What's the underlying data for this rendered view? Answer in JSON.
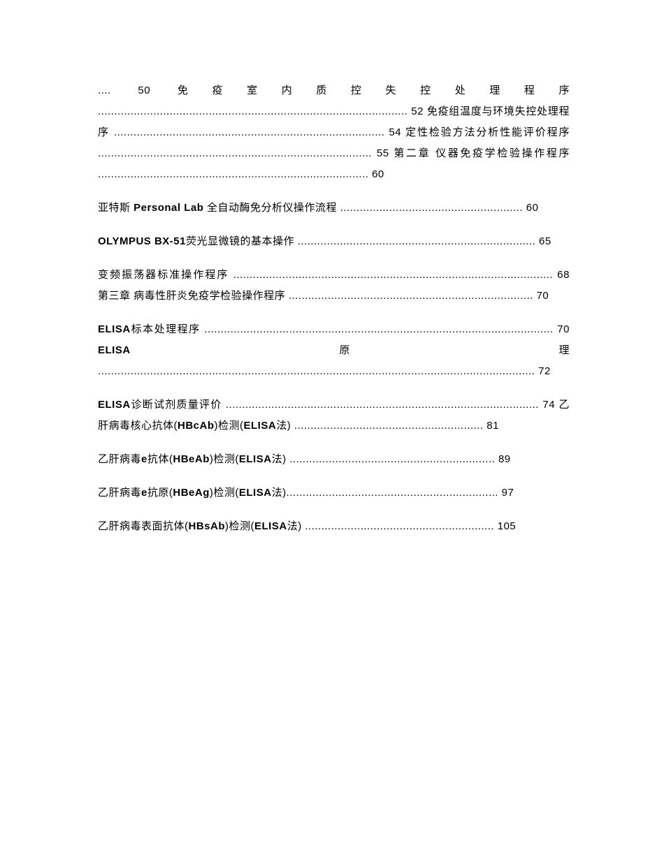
{
  "document": {
    "background_color": "#ffffff",
    "text_color": "#000000",
    "font_size": 15,
    "line_height": 2.0
  },
  "blocks": [
    {
      "html": ".... 50 免疫室内质控失控处理程序 ............................................................................................... 52 免疫组温度与环境失控处理程序 ................................................................................... 54 定性检验方法分析性能评价程序 .................................................................................... 55 第二章 仪器免疫学检验操作程序 ................................................................................... 60"
    },
    {
      "html": "亚特斯 <span class=\"bold\">Personal Lab</span> 全自动酶免分析仪操作流程 ........................................................ 60"
    },
    {
      "html": "<span class=\"bold\">OLYMPUS BX-51</span>荧光显微镜的基本操作 ......................................................................... 65"
    },
    {
      "html": "变频振荡器标准操作程序 .................................................................................................. 68 第三章 病毒性肝炎免疫学检验操作程序 ........................................................................... 70"
    },
    {
      "html": "<span class=\"bold\">ELISA</span>标本处理程序 ........................................................................................................... 70 <span class=\"bold\">ELISA</span>原理 ...................................................................................................................................... 72"
    },
    {
      "html": "<span class=\"bold\">ELISA</span>诊断试剂质量评价 ................................................................................................ 74 乙肝病毒核心抗体(<span class=\"bold\">HBcAb</span>)检测(<span class=\"bold\">ELISA</span>法) .......................................................... 81"
    },
    {
      "html": "乙肝病毒<span class=\"bold\">e</span>抗体(<span class=\"bold\">HBeAb</span>)检测(<span class=\"bold\">ELISA</span>法) ............................................................... 89"
    },
    {
      "html": "乙肝病毒<span class=\"bold\">e</span>抗原(<span class=\"bold\">HBeAg</span>)检测(<span class=\"bold\">ELISA</span>法)................................................................. 97"
    },
    {
      "html": "乙肝病毒表面抗体(<span class=\"bold\">HBsAb</span>)检测(<span class=\"bold\">ELISA</span>法) .......................................................... 105"
    }
  ]
}
